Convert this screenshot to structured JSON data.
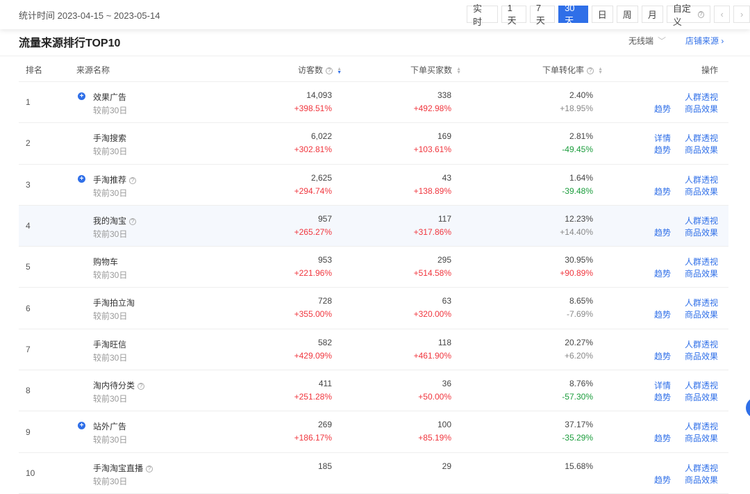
{
  "header": {
    "range": "统计时间 2023-04-15 ~ 2023-05-14",
    "buttons": [
      "实 时",
      "1天",
      "7天",
      "30天",
      "日",
      "周",
      "月",
      "自定义"
    ],
    "active": "30天",
    "prev": "‹",
    "next": "›"
  },
  "section": {
    "title": "流量来源排行TOP10",
    "device": "无线端",
    "device_chevron": "﹀",
    "shop_source": "店铺来源",
    "shop_chevron": "›"
  },
  "columns": {
    "rank": "排名",
    "name": "来源名称",
    "visitors": "访客数",
    "buyers": "下单买家数",
    "rate": "下单转化率",
    "ops": "操作"
  },
  "help": "?",
  "plus": "+",
  "accent": "#2f6fe8",
  "rows": [
    {
      "rank": "1",
      "name": "效果广告",
      "plus": true,
      "help": false,
      "sub": "较前30日",
      "visitors": "14,093",
      "visitors_chg": "+398.51%",
      "buyers": "338",
      "buyers_chg": "+492.98%",
      "rate": "2.40%",
      "rate_chg": "+18.95%",
      "rate_color": "gray",
      "detail": false
    },
    {
      "rank": "2",
      "name": "手淘搜索",
      "plus": false,
      "help": false,
      "sub": "较前30日",
      "visitors": "6,022",
      "visitors_chg": "+302.81%",
      "buyers": "169",
      "buyers_chg": "+103.61%",
      "rate": "2.81%",
      "rate_chg": "-49.45%",
      "rate_color": "green",
      "detail": true
    },
    {
      "rank": "3",
      "name": "手淘推荐",
      "plus": true,
      "help": true,
      "sub": "较前30日",
      "visitors": "2,625",
      "visitors_chg": "+294.74%",
      "buyers": "43",
      "buyers_chg": "+138.89%",
      "rate": "1.64%",
      "rate_chg": "-39.48%",
      "rate_color": "green",
      "detail": false
    },
    {
      "rank": "4",
      "name": "我的淘宝",
      "plus": false,
      "help": true,
      "sub": "较前30日",
      "visitors": "957",
      "visitors_chg": "+265.27%",
      "buyers": "117",
      "buyers_chg": "+317.86%",
      "rate": "12.23%",
      "rate_chg": "+14.40%",
      "rate_color": "gray",
      "detail": false,
      "highlight": true
    },
    {
      "rank": "5",
      "name": "购物车",
      "plus": false,
      "help": false,
      "sub": "较前30日",
      "visitors": "953",
      "visitors_chg": "+221.96%",
      "buyers": "295",
      "buyers_chg": "+514.58%",
      "rate": "30.95%",
      "rate_chg": "+90.89%",
      "rate_color": "red",
      "detail": false
    },
    {
      "rank": "6",
      "name": "手淘拍立淘",
      "plus": false,
      "help": false,
      "sub": "较前30日",
      "visitors": "728",
      "visitors_chg": "+355.00%",
      "buyers": "63",
      "buyers_chg": "+320.00%",
      "rate": "8.65%",
      "rate_chg": "-7.69%",
      "rate_color": "gray",
      "detail": false
    },
    {
      "rank": "7",
      "name": "手淘旺信",
      "plus": false,
      "help": false,
      "sub": "较前30日",
      "visitors": "582",
      "visitors_chg": "+429.09%",
      "buyers": "118",
      "buyers_chg": "+461.90%",
      "rate": "20.27%",
      "rate_chg": "+6.20%",
      "rate_color": "gray",
      "detail": false
    },
    {
      "rank": "8",
      "name": "淘内待分类",
      "plus": false,
      "help": true,
      "sub": "较前30日",
      "visitors": "411",
      "visitors_chg": "+251.28%",
      "buyers": "36",
      "buyers_chg": "+50.00%",
      "rate": "8.76%",
      "rate_chg": "-57.30%",
      "rate_color": "green",
      "detail": true
    },
    {
      "rank": "9",
      "name": "站外广告",
      "plus": true,
      "help": false,
      "sub": "较前30日",
      "visitors": "269",
      "visitors_chg": "+186.17%",
      "buyers": "100",
      "buyers_chg": "+85.19%",
      "rate": "37.17%",
      "rate_chg": "-35.29%",
      "rate_color": "green",
      "detail": false
    },
    {
      "rank": "10",
      "name": "手淘淘宝直播",
      "plus": false,
      "help": true,
      "sub": "较前30日",
      "visitors": "185",
      "visitors_chg": "",
      "buyers": "29",
      "buyers_chg": "",
      "rate": "15.68%",
      "rate_chg": "",
      "rate_color": "gray",
      "detail": false
    }
  ],
  "actions": {
    "detail": "详情",
    "crowd": "人群透视",
    "trend": "趋势",
    "product": "商品效果"
  }
}
